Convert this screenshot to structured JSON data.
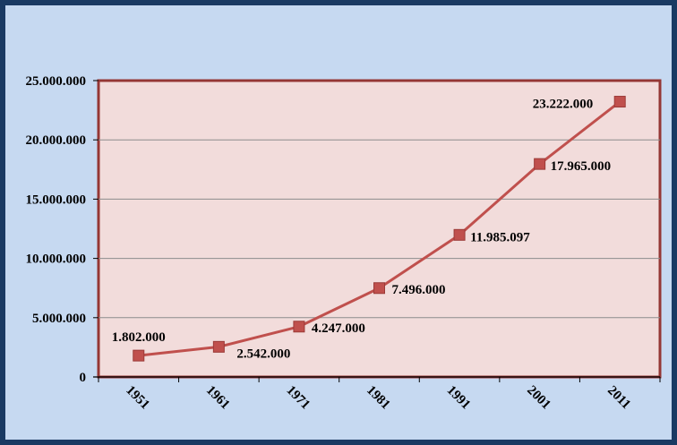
{
  "chart_data": {
    "type": "line",
    "categories": [
      "1951",
      "1961",
      "1971",
      "1981",
      "1991",
      "2001",
      "2011"
    ],
    "series": [
      {
        "values": [
          1802000,
          2542000,
          4247000,
          7496000,
          11985097,
          17965000,
          23222000
        ]
      }
    ],
    "data_labels": [
      "1.802.000",
      "2.542.000",
      "4.247.000",
      "7.496.000",
      "11.985.097",
      "17.965.000",
      "23.222.000"
    ],
    "y_ticks": [
      0,
      5000000,
      10000000,
      15000000,
      20000000,
      25000000
    ],
    "y_tick_labels": [
      "0",
      "5.000.000",
      "10.000.000",
      "15.000.000",
      "20.000.000",
      "25.000.000"
    ],
    "ylim": [
      0,
      25000000
    ],
    "grid": true,
    "legend": "none",
    "title": "",
    "xlabel": "",
    "ylabel": "",
    "colors": {
      "background": "#c6d9f1",
      "plot_area": "#f2dcdb",
      "plot_border": "#953735",
      "line": "#c0504d",
      "marker": "#c0504d",
      "gridline": "#8c8c8c"
    }
  }
}
